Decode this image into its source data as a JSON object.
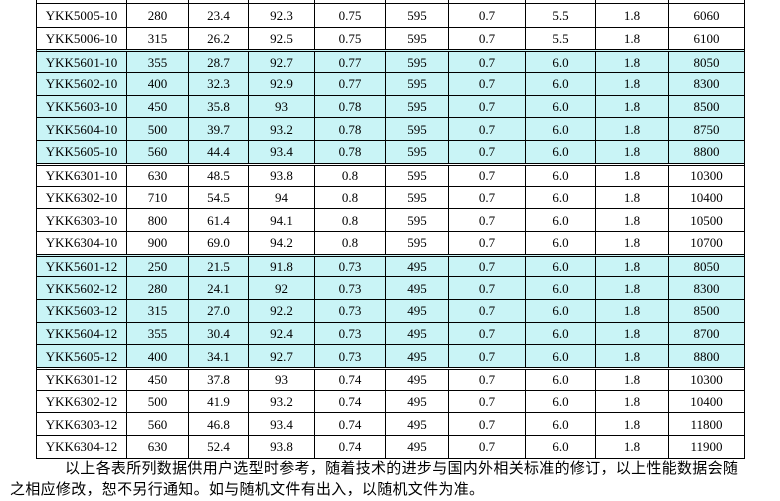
{
  "colors": {
    "row_highlight": "#c9f4f6",
    "border": "#000000",
    "page_background": "#ffffff"
  },
  "table": {
    "column_count": 10,
    "groups": [
      {
        "highlight": false,
        "rows": [
          {
            "model": "YKK5005-10",
            "values": [
              "280",
              "23.4",
              "92.3",
              "0.75",
              "595",
              "0.7",
              "5.5",
              "1.8",
              "6060"
            ]
          },
          {
            "model": "YKK5006-10",
            "values": [
              "315",
              "26.2",
              "92.5",
              "0.75",
              "595",
              "0.7",
              "5.5",
              "1.8",
              "6100"
            ]
          }
        ]
      },
      {
        "highlight": true,
        "rows": [
          {
            "model": "YKK5601-10",
            "values": [
              "355",
              "28.7",
              "92.7",
              "0.77",
              "595",
              "0.7",
              "6.0",
              "1.8",
              "8050"
            ]
          },
          {
            "model": "YKK5602-10",
            "values": [
              "400",
              "32.3",
              "92.9",
              "0.77",
              "595",
              "0.7",
              "6.0",
              "1.8",
              "8300"
            ]
          },
          {
            "model": "YKK5603-10",
            "values": [
              "450",
              "35.8",
              "93",
              "0.78",
              "595",
              "0.7",
              "6.0",
              "1.8",
              "8500"
            ]
          },
          {
            "model": "YKK5604-10",
            "values": [
              "500",
              "39.7",
              "93.2",
              "0.78",
              "595",
              "0.7",
              "6.0",
              "1.8",
              "8750"
            ]
          },
          {
            "model": "YKK5605-10",
            "values": [
              "560",
              "44.4",
              "93.4",
              "0.78",
              "595",
              "0.7",
              "6.0",
              "1.8",
              "8800"
            ]
          }
        ]
      },
      {
        "highlight": false,
        "rows": [
          {
            "model": "YKK6301-10",
            "values": [
              "630",
              "48.5",
              "93.8",
              "0.8",
              "595",
              "0.7",
              "6.0",
              "1.8",
              "10300"
            ]
          },
          {
            "model": "YKK6302-10",
            "values": [
              "710",
              "54.5",
              "94",
              "0.8",
              "595",
              "0.7",
              "6.0",
              "1.8",
              "10400"
            ]
          },
          {
            "model": "YKK6303-10",
            "values": [
              "800",
              "61.4",
              "94.1",
              "0.8",
              "595",
              "0.7",
              "6.0",
              "1.8",
              "10500"
            ]
          },
          {
            "model": "YKK6304-10",
            "values": [
              "900",
              "69.0",
              "94.2",
              "0.8",
              "595",
              "0.7",
              "6.0",
              "1.8",
              "10700"
            ]
          }
        ]
      },
      {
        "highlight": true,
        "rows": [
          {
            "model": "YKK5601-12",
            "values": [
              "250",
              "21.5",
              "91.8",
              "0.73",
              "495",
              "0.7",
              "6.0",
              "1.8",
              "8050"
            ]
          },
          {
            "model": "YKK5602-12",
            "values": [
              "280",
              "24.1",
              "92",
              "0.73",
              "495",
              "0.7",
              "6.0",
              "1.8",
              "8300"
            ]
          },
          {
            "model": "YKK5603-12",
            "values": [
              "315",
              "27.0",
              "92.2",
              "0.73",
              "495",
              "0.7",
              "6.0",
              "1.8",
              "8500"
            ]
          },
          {
            "model": "YKK5604-12",
            "values": [
              "355",
              "30.4",
              "92.4",
              "0.73",
              "495",
              "0.7",
              "6.0",
              "1.8",
              "8700"
            ]
          },
          {
            "model": "YKK5605-12",
            "values": [
              "400",
              "34.1",
              "92.7",
              "0.73",
              "495",
              "0.7",
              "6.0",
              "1.8",
              "8800"
            ]
          }
        ]
      },
      {
        "highlight": false,
        "rows": [
          {
            "model": "YKK6301-12",
            "values": [
              "450",
              "37.8",
              "93",
              "0.74",
              "495",
              "0.7",
              "6.0",
              "1.8",
              "10300"
            ]
          },
          {
            "model": "YKK6302-12",
            "values": [
              "500",
              "41.9",
              "93.2",
              "0.74",
              "495",
              "0.7",
              "6.0",
              "1.8",
              "10400"
            ]
          },
          {
            "model": "YKK6303-12",
            "values": [
              "560",
              "46.8",
              "93.4",
              "0.74",
              "495",
              "0.7",
              "6.0",
              "1.8",
              "11800"
            ]
          },
          {
            "model": "YKK6304-12",
            "values": [
              "630",
              "52.4",
              "93.8",
              "0.74",
              "495",
              "0.7",
              "6.0",
              "1.8",
              "11900"
            ]
          }
        ]
      }
    ]
  },
  "footer": {
    "line1": "以上各表所列数据供用户选型时参考，随着技术的进步与国内外相关标准的修订，以上性能数据会随",
    "line2": "之相应修改，恕不另行通知。如与随机文件有出入，以随机文件为准。"
  }
}
